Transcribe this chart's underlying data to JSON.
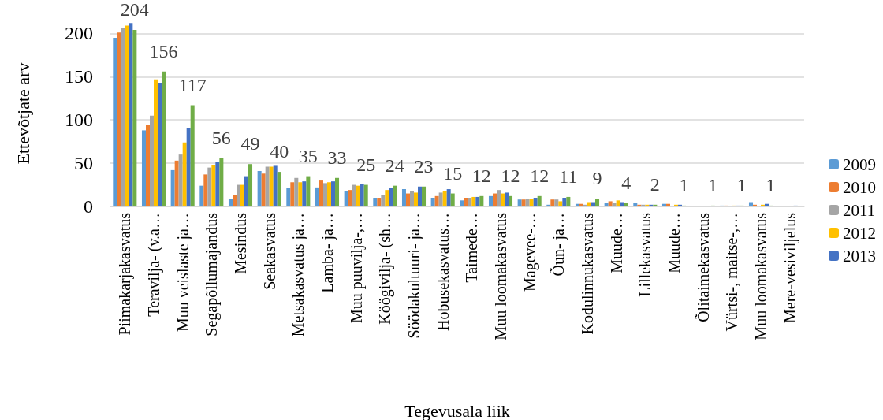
{
  "chart_data": {
    "type": "bar",
    "xlabel": "Tegevusala liik",
    "ylabel": "Ettevõtjate arv",
    "categories": [
      "Piimakarjakasvatus",
      "Teravilja- (v.a…",
      "Muu veislaste ja…",
      "Segapõllumajandus",
      "Mesindus",
      "Seakasvatus",
      "Metsakasvatus ja…",
      "Lamba- ja…",
      "Muu puuvilja-,…",
      "Köögivilja- (sh…",
      "Söödakultuuri- ja…",
      "Hobusekasvatus…",
      "Taimede…",
      "Muu loomakasvatus",
      "Magevee-…",
      "Õun- ja…",
      "Kodulinnukasvatus",
      "Muude…",
      "Lillekasvatus",
      "Muude…",
      "Õlitaimekasvatus",
      "Vürtsi-, maitse-,…",
      "Muu loomakasvatus",
      "Mere-vesiviljelus"
    ],
    "series": [
      {
        "name": "2009",
        "color": "#5b9bd5",
        "values": [
          195,
          88,
          42,
          24,
          9,
          41,
          21,
          22,
          18,
          10,
          20,
          10,
          7,
          12,
          8,
          2,
          3,
          4,
          4,
          3,
          0,
          1,
          5,
          0
        ]
      },
      {
        "name": "2010",
        "color": "#ed7d31",
        "values": [
          201,
          94,
          53,
          37,
          13,
          38,
          28,
          30,
          19,
          10,
          15,
          12,
          10,
          15,
          8,
          8,
          3,
          6,
          2,
          3,
          0,
          1,
          2,
          0
        ]
      },
      {
        "name": "2011",
        "color": "#a5a5a5",
        "values": [
          206,
          105,
          60,
          45,
          25,
          46,
          33,
          27,
          25,
          13,
          18,
          16,
          10,
          19,
          9,
          8,
          2,
          4,
          2,
          0,
          0,
          null,
          0,
          0
        ]
      },
      {
        "name": "2012",
        "color": "#ffc000",
        "values": [
          209,
          147,
          74,
          48,
          25,
          46,
          28,
          28,
          24,
          19,
          16,
          18,
          11,
          15,
          9,
          6,
          5,
          7,
          2,
          2,
          0,
          1,
          2,
          0
        ]
      },
      {
        "name": "2013",
        "color": "#4472c4",
        "values": [
          212,
          143,
          91,
          51,
          35,
          47,
          29,
          29,
          26,
          21,
          23,
          20,
          11,
          16,
          10,
          10,
          5,
          5,
          2,
          2,
          0,
          1,
          3,
          1
        ]
      },
      {
        "color": "#70ad47",
        "values": [
          204,
          156,
          117,
          56,
          49,
          40,
          35,
          33,
          25,
          24,
          23,
          15,
          12,
          12,
          12,
          11,
          9,
          4,
          2,
          1,
          1,
          1,
          1,
          null
        ],
        "value_labels": [
          "204",
          "156",
          "117",
          "56",
          "49",
          "40",
          "35",
          "33",
          "25",
          "24",
          "23",
          "15",
          "12",
          "12",
          "12",
          "11",
          "9",
          "4",
          "2",
          "1",
          "1",
          "1",
          "1",
          null
        ]
      }
    ],
    "ylim": [
      0,
      215
    ],
    "yticks": [
      0,
      50,
      100,
      150,
      200
    ],
    "grid": "y",
    "legend": "right"
  }
}
